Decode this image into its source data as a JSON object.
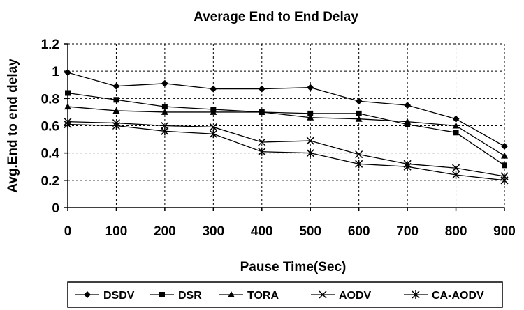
{
  "chart_data": {
    "type": "line",
    "title": "Average End to End Delay",
    "xlabel": "Pause Time(Sec)",
    "ylabel": "Avg.End to end delay",
    "x": [
      0,
      100,
      200,
      300,
      400,
      500,
      600,
      700,
      800,
      900
    ],
    "xticks": [
      "0",
      "100",
      "200",
      "300",
      "400",
      "500",
      "600",
      "700",
      "800",
      "900"
    ],
    "yticks": [
      "0",
      "0.2",
      "0.4",
      "0.6",
      "0.8",
      "1",
      "1.2"
    ],
    "ylim": [
      0,
      1.2
    ],
    "xlim": [
      0,
      900
    ],
    "grid": true,
    "legend_position": "bottom",
    "series": [
      {
        "name": "DSDV",
        "marker": "diamond",
        "values": [
          0.99,
          0.89,
          0.91,
          0.87,
          0.87,
          0.88,
          0.78,
          0.75,
          0.65,
          0.45
        ]
      },
      {
        "name": "DSR",
        "marker": "square",
        "values": [
          0.84,
          0.79,
          0.74,
          0.72,
          0.7,
          0.69,
          0.69,
          0.61,
          0.55,
          0.31
        ]
      },
      {
        "name": "TORA",
        "marker": "triangle",
        "values": [
          0.74,
          0.71,
          0.7,
          0.7,
          0.7,
          0.66,
          0.65,
          0.63,
          0.6,
          0.38
        ]
      },
      {
        "name": "AODV",
        "marker": "x",
        "values": [
          0.63,
          0.62,
          0.6,
          0.59,
          0.48,
          0.49,
          0.39,
          0.32,
          0.29,
          0.23
        ]
      },
      {
        "name": "CA-AODV",
        "marker": "star",
        "values": [
          0.61,
          0.6,
          0.56,
          0.54,
          0.41,
          0.4,
          0.32,
          0.3,
          0.24,
          0.2
        ]
      }
    ]
  }
}
